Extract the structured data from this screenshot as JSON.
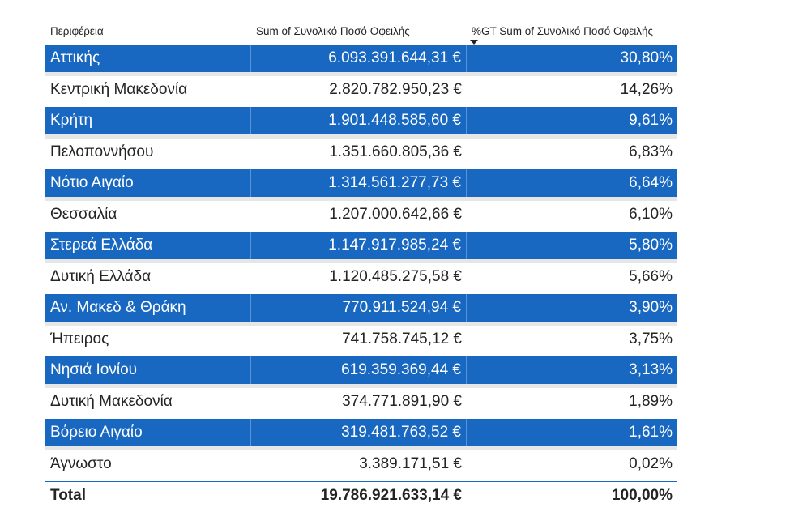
{
  "table": {
    "headers": {
      "region": "Περιφέρεια",
      "sum": "Sum of Συνολικό Ποσό Οφειλής",
      "pct": "%GT Sum of Συνολικό Ποσό Οφειλής"
    },
    "sort": {
      "column": "pct",
      "direction": "descending"
    },
    "rows": [
      {
        "region": "Αττικής",
        "sum": "6.093.391.644,31 €",
        "pct": "30,80%"
      },
      {
        "region": "Κεντρική Μακεδονία",
        "sum": "2.820.782.950,23 €",
        "pct": "14,26%"
      },
      {
        "region": "Κρήτη",
        "sum": "1.901.448.585,60 €",
        "pct": "9,61%"
      },
      {
        "region": "Πελοποννήσου",
        "sum": "1.351.660.805,36 €",
        "pct": "6,83%"
      },
      {
        "region": "Νότιο Αιγαίο",
        "sum": "1.314.561.277,73 €",
        "pct": "6,64%"
      },
      {
        "region": "Θεσσαλία",
        "sum": "1.207.000.642,66 €",
        "pct": "6,10%"
      },
      {
        "region": "Στερεά Ελλάδα",
        "sum": "1.147.917.985,24 €",
        "pct": "5,80%"
      },
      {
        "region": "Δυτική Ελλάδα",
        "sum": "1.120.485.275,58 €",
        "pct": "5,66%"
      },
      {
        "region": "Αν. Μακεδ & Θράκη",
        "sum": "770.911.524,94 €",
        "pct": "3,90%"
      },
      {
        "region": "Ήπειρος",
        "sum": "741.758.745,12 €",
        "pct": "3,75%"
      },
      {
        "region": "Νησιά Ιονίου",
        "sum": "619.359.369,44 €",
        "pct": "3,13%"
      },
      {
        "region": "Δυτική Μακεδονία",
        "sum": "374.771.891,90 €",
        "pct": "1,89%"
      },
      {
        "region": "Βόρειο Αιγαίο",
        "sum": "319.481.763,52 €",
        "pct": "1,61%"
      },
      {
        "region": "Άγνωστο",
        "sum": "3.389.171,51 €",
        "pct": "0,02%"
      }
    ],
    "total": {
      "label": "Total",
      "sum": "19.786.921.633,14 €",
      "pct": "100,00%"
    }
  },
  "colors": {
    "band": "#1868c2",
    "band_text": "#ffffff",
    "text": "#252423"
  }
}
